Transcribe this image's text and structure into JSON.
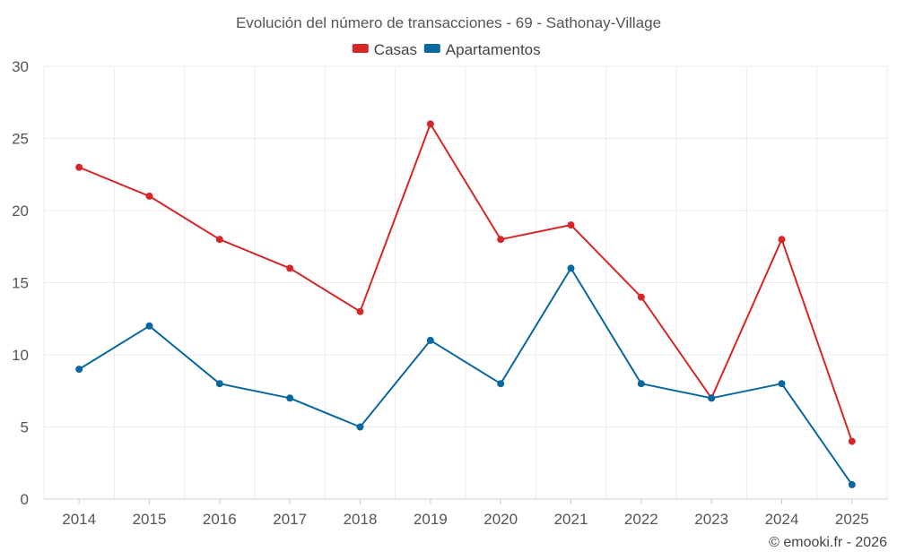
{
  "chart_data": {
    "type": "line",
    "title": "Evolución del número de transacciones - 69 - Sathonay-Village",
    "categories": [
      "2014",
      "2015",
      "2016",
      "2017",
      "2018",
      "2019",
      "2020",
      "2021",
      "2022",
      "2023",
      "2024",
      "2025"
    ],
    "series": [
      {
        "name": "Casas",
        "color": "#d62728",
        "values": [
          23,
          21,
          18,
          16,
          13,
          26,
          18,
          19,
          14,
          7,
          18,
          4
        ]
      },
      {
        "name": "Apartamentos",
        "color": "#0868a0",
        "values": [
          9,
          12,
          8,
          7,
          5,
          11,
          8,
          16,
          8,
          7,
          8,
          1
        ]
      }
    ],
    "ylim": [
      0,
      30
    ],
    "yticks": [
      0,
      5,
      10,
      15,
      20,
      25,
      30
    ],
    "xlabel": "",
    "ylabel": "",
    "grid": true,
    "legend_position": "top-center"
  },
  "credit": "© emooki.fr - 2026"
}
